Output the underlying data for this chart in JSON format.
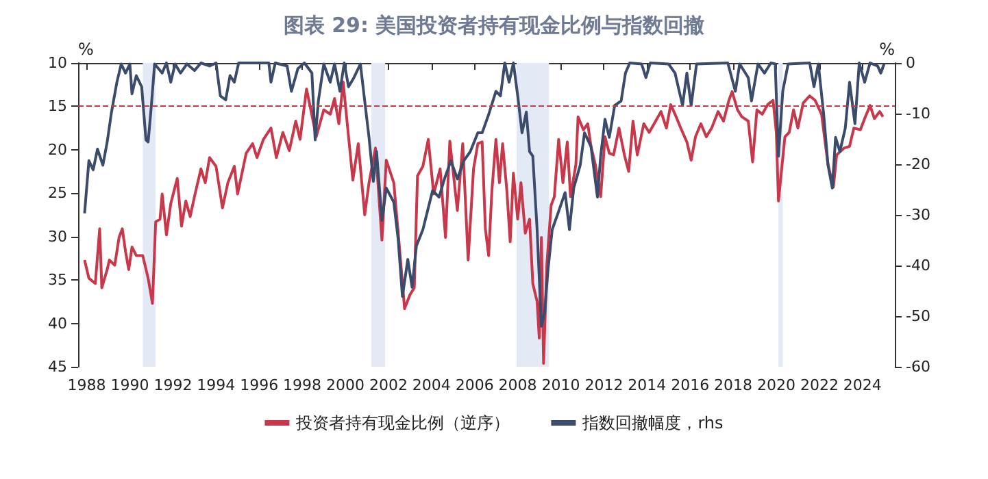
{
  "chart_data": {
    "type": "line",
    "title": "图表 29: 美国投资者持有现金比例与指数回撤",
    "ylabel": "%",
    "y2label": "%",
    "xlim": [
      1987.6,
      2025.5
    ],
    "xticks": [
      1988,
      1990,
      1992,
      1994,
      1996,
      1998,
      2000,
      2002,
      2004,
      2006,
      2008,
      2010,
      2012,
      2014,
      2016,
      2018,
      2020,
      2022,
      2024
    ],
    "ylim": [
      45,
      10
    ],
    "yticks": [
      10,
      15,
      20,
      25,
      30,
      35,
      40,
      45
    ],
    "y2lim": [
      -60,
      0
    ],
    "y2ticks": [
      -60,
      -50,
      -40,
      -30,
      -20,
      -10,
      0
    ],
    "grid": false,
    "legend": "bottom",
    "marker": "none",
    "line_style": "solid",
    "series": [
      {
        "name": "投资者持有现金比例（逆序）",
        "color": "#c8384a",
        "x": [
          1987.9,
          1988.1,
          1988.4,
          1988.6,
          1988.7,
          1988.95,
          1989.05,
          1989.3,
          1989.5,
          1989.65,
          1989.8,
          1989.95,
          1990.1,
          1990.3,
          1990.6,
          1990.85,
          1991.05,
          1991.2,
          1991.4,
          1991.5,
          1991.7,
          1991.9,
          1992.2,
          1992.4,
          1992.6,
          1992.8,
          1993.0,
          1993.3,
          1993.5,
          1993.7,
          1994.0,
          1994.3,
          1994.55,
          1994.85,
          1995.0,
          1995.4,
          1995.7,
          1995.9,
          1996.2,
          1996.55,
          1996.8,
          1997.1,
          1997.4,
          1997.7,
          1997.9,
          1998.2,
          1998.4,
          1998.65,
          1999.0,
          1999.3,
          1999.5,
          1999.7,
          1999.9,
          2000.15,
          2000.35,
          2000.6,
          2000.9,
          2001.1,
          2001.4,
          2001.7,
          2001.9,
          2002.25,
          2002.5,
          2002.75,
          2003.0,
          2003.2,
          2003.35,
          2003.6,
          2003.85,
          2004.1,
          2004.4,
          2004.65,
          2004.85,
          2005.2,
          2005.45,
          2005.7,
          2005.95,
          2006.15,
          2006.35,
          2006.5,
          2006.65,
          2006.8,
          2006.99,
          2007.15,
          2007.3,
          2007.5,
          2007.65,
          2007.8,
          2008.0,
          2008.15,
          2008.35,
          2008.55,
          2008.7,
          2008.9,
          2009.0,
          2009.1,
          2009.2,
          2009.35,
          2009.55,
          2009.7,
          2009.9,
          2010.1,
          2010.3,
          2010.45,
          2010.7,
          2010.8,
          2011.05,
          2011.25,
          2011.4,
          2011.6,
          2011.85,
          2012.05,
          2012.25,
          2012.45,
          2012.7,
          2012.95,
          2013.15,
          2013.35,
          2013.55,
          2013.85,
          2014.1,
          2014.4,
          2014.65,
          2014.9,
          2015.1,
          2015.3,
          2015.6,
          2015.85,
          2016.05,
          2016.25,
          2016.5,
          2016.75,
          2017.0,
          2017.3,
          2017.55,
          2017.8,
          2017.95,
          2018.2,
          2018.4,
          2018.7,
          2018.9,
          2019.1,
          2019.35,
          2019.6,
          2019.85,
          2020.0,
          2020.1,
          2020.4,
          2020.6,
          2020.8,
          2021.0,
          2021.25,
          2021.55,
          2021.8,
          2022.1,
          2022.4,
          2022.65,
          2022.8,
          2023.15,
          2023.4,
          2023.6,
          2023.9,
          2024.1,
          2024.35,
          2024.55,
          2024.8,
          2024.95
        ],
        "values": [
          32.7,
          34.8,
          35.4,
          29.1,
          35.9,
          33.8,
          32.7,
          33.3,
          30.1,
          29.1,
          31.7,
          33.8,
          31.2,
          32.2,
          32.2,
          34.8,
          37.7,
          28.3,
          28,
          25.1,
          29.8,
          26.2,
          23.3,
          28.8,
          25.9,
          27.7,
          25.4,
          22.2,
          23.8,
          20.9,
          21.9,
          26.7,
          23.8,
          21.9,
          25.1,
          20.4,
          19.3,
          20.9,
          18.8,
          17.5,
          20.9,
          18,
          20.1,
          16.7,
          18.8,
          13,
          15.4,
          18.5,
          15.4,
          15.9,
          14.1,
          17,
          12.2,
          18.5,
          23.5,
          19.3,
          27.5,
          23.8,
          19.8,
          30.4,
          21.2,
          23.8,
          30.9,
          38.3,
          36.7,
          35.9,
          23,
          21.9,
          18.8,
          25.1,
          22.2,
          30.1,
          19,
          27,
          19.3,
          32.7,
          22.2,
          19.3,
          19.1,
          29.1,
          32.2,
          24.8,
          18.8,
          23.8,
          19.3,
          24.8,
          30.6,
          22.7,
          28,
          23.8,
          29.6,
          28,
          35.4,
          37.5,
          41.7,
          30.1,
          44.6,
          33.3,
          26.4,
          25.4,
          18.8,
          23.8,
          19.1,
          25.4,
          21.7,
          16.2,
          17.7,
          17,
          19.6,
          21.7,
          25.4,
          18.5,
          20.4,
          20.6,
          17.5,
          20.6,
          22.5,
          16.7,
          20.6,
          17,
          18,
          16.7,
          15.6,
          17.5,
          14.8,
          15.9,
          17.7,
          19.1,
          21.2,
          18.5,
          17,
          18.5,
          17.5,
          15.6,
          16.7,
          14.3,
          13.3,
          15.4,
          16.2,
          16.7,
          21.4,
          15.4,
          15.9,
          14.8,
          14.3,
          18,
          25.9,
          18.5,
          18,
          15.4,
          17.5,
          14.6,
          13.8,
          14.3,
          15.9,
          21.7,
          24.3,
          20.6,
          19.8,
          19.6,
          17.5,
          17.7,
          16.4,
          14.9,
          16.4,
          15.6,
          16.2
        ]
      },
      {
        "name": "指数回撤幅度，rhs",
        "color": "#3b4b6b",
        "axis": "y2",
        "x": [
          1987.9,
          1988.1,
          1988.3,
          1988.5,
          1988.75,
          1988.95,
          1989.15,
          1989.4,
          1989.6,
          1989.8,
          1990.0,
          1990.1,
          1990.3,
          1990.55,
          1990.75,
          1990.85,
          1991.0,
          1991.15,
          1991.5,
          1991.7,
          1991.9,
          1992.1,
          1992.35,
          1992.65,
          1993.0,
          1993.3,
          1993.7,
          1994.0,
          1994.2,
          1994.45,
          1994.65,
          1994.85,
          1995.05,
          1996.45,
          1996.55,
          1996.75,
          1997.3,
          1997.5,
          1997.8,
          1998.1,
          1998.45,
          1998.6,
          1998.75,
          1999.0,
          1999.3,
          1999.5,
          1999.75,
          1999.95,
          2000.15,
          2000.4,
          2000.7,
          2000.9,
          2001.1,
          2001.3,
          2001.45,
          2001.7,
          2001.9,
          2002.25,
          2002.45,
          2002.65,
          2002.9,
          2003.1,
          2003.3,
          2003.6,
          2004.05,
          2004.35,
          2004.6,
          2004.9,
          2005.2,
          2005.5,
          2005.8,
          2006.15,
          2006.35,
          2006.65,
          2006.99,
          2007.2,
          2007.4,
          2007.6,
          2007.8,
          2008.0,
          2008.2,
          2008.4,
          2008.55,
          2008.7,
          2008.9,
          2009.1,
          2009.25,
          2009.4,
          2009.6,
          2009.9,
          2010.2,
          2010.4,
          2010.6,
          2010.9,
          2011.1,
          2011.4,
          2011.7,
          2011.85,
          2012.05,
          2012.25,
          2012.5,
          2012.8,
          2013.0,
          2013.2,
          2013.75,
          2013.95,
          2014.15,
          2015.0,
          2015.3,
          2015.65,
          2015.85,
          2016.05,
          2016.3,
          2017.75,
          2018.1,
          2018.3,
          2018.7,
          2018.85,
          2019.15,
          2019.45,
          2019.75,
          2019.95,
          2020.1,
          2020.3,
          2020.55,
          2021.55,
          2021.75,
          2021.95,
          2022.2,
          2022.4,
          2022.6,
          2022.75,
          2022.95,
          2023.2,
          2023.4,
          2023.65,
          2023.85,
          2024.1,
          2024.35,
          2024.7,
          2024.85,
          2025.0
        ],
        "values": [
          -29.7,
          -19.3,
          -21.1,
          -17,
          -20.2,
          -15.6,
          -9.7,
          -3.8,
          -0.2,
          -2,
          -0.2,
          -6.1,
          -2.5,
          -4.7,
          -15.2,
          -15.6,
          -8.4,
          -0.2,
          -2,
          0,
          -3.8,
          -0.2,
          -2,
          -0.2,
          -1.5,
          0,
          -0.6,
          0,
          -6.5,
          -7.3,
          -2.5,
          -3.8,
          0,
          0,
          -3.8,
          0,
          -0.6,
          -5.6,
          -1.1,
          0,
          -2,
          -15.2,
          -7.5,
          -0.2,
          -3.8,
          -0.2,
          -5.6,
          0,
          -4.7,
          -2.9,
          -0.2,
          -7.5,
          -14.7,
          -23.4,
          -17.5,
          -31.1,
          -24.7,
          -27.5,
          -34.7,
          -46.1,
          -38.8,
          -44.3,
          -36.1,
          -32.9,
          -25.2,
          -26.5,
          -22.9,
          -19.3,
          -22.9,
          -19.3,
          -17.5,
          -13.8,
          -13.8,
          -10.2,
          -5.6,
          -6.5,
          0,
          -3.8,
          0,
          -6.5,
          -13.8,
          -9.7,
          -17.5,
          -18.4,
          -32.9,
          -52,
          -49.3,
          -41.1,
          -32.9,
          -29.3,
          -25.6,
          -32.9,
          -24.7,
          -20.2,
          -13.8,
          -16.5,
          -26.5,
          -18.4,
          -11.1,
          -14.7,
          -8.4,
          -7.5,
          -2,
          0,
          -0.2,
          -2.9,
          0,
          -0.2,
          -2,
          -8.4,
          -2,
          -8.4,
          -0.2,
          0,
          -5.6,
          -0.2,
          -2.9,
          -7.5,
          -0.2,
          -2,
          0,
          -0.2,
          -18.4,
          -5.6,
          -0.2,
          0,
          -4.7,
          -0.2,
          -10.2,
          -20.2,
          -24.7,
          -14.7,
          -17.5,
          -12.9,
          -3.8,
          -12,
          0,
          -3.8,
          0,
          -0.6,
          -2,
          -0.2
        ]
      }
    ],
    "ref_lines": [
      {
        "axis": "y",
        "value": 15,
        "color": "#c8384a",
        "line_style": "dashed"
      }
    ],
    "bands": [
      {
        "axis": "x",
        "from": 1990.6,
        "to": 1991.2,
        "color": "#e3eaf5"
      },
      {
        "axis": "x",
        "from": 2001.2,
        "to": 2001.85,
        "color": "#e3eaf5"
      },
      {
        "axis": "x",
        "from": 2007.95,
        "to": 2009.45,
        "color": "#e3eaf5"
      },
      {
        "axis": "x",
        "from": 2020.1,
        "to": 2020.3,
        "color": "#e3eaf5"
      }
    ]
  }
}
